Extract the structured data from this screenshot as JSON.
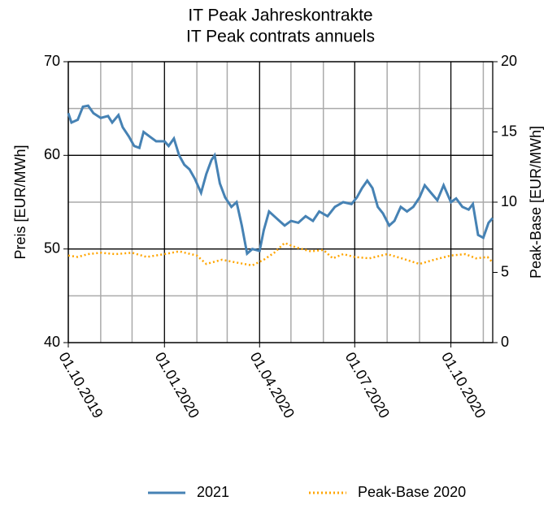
{
  "chart_data": {
    "type": "line",
    "title": "IT Peak Jahreskontrakte",
    "subtitle": "IT Peak contrats annuels",
    "ylabel": "Preis [EUR/MWh]",
    "y2label": "Peak-Base [EUR/MWh]",
    "ylim": [
      40,
      70
    ],
    "yticks": [
      40,
      50,
      60,
      70
    ],
    "yminorticks": [
      45,
      55,
      65
    ],
    "y2lim": [
      0,
      20
    ],
    "y2ticks": [
      0,
      5,
      10,
      15,
      20
    ],
    "xlim": [
      "2019-10-01",
      "2020-11-10"
    ],
    "xticks": [
      {
        "value": "2019-10-01",
        "label": "01.10.2019"
      },
      {
        "value": "2020-01-01",
        "label": "01.01.2020"
      },
      {
        "value": "2020-04-01",
        "label": "01.04.2020"
      },
      {
        "value": "2020-07-01",
        "label": "01.07.2020"
      },
      {
        "value": "2020-10-01",
        "label": "01.10.2020"
      }
    ],
    "xminorticks": [
      "2019-11-01",
      "2019-12-01",
      "2020-02-01",
      "2020-03-01",
      "2020-05-01",
      "2020-06-01",
      "2020-08-01",
      "2020-09-01",
      "2020-11-01"
    ],
    "grid": true,
    "legend": "bottom",
    "series": [
      {
        "name": "2021",
        "color": "#4682b4",
        "style": "solid",
        "x": [
          "2019-10-01",
          "2019-10-04",
          "2019-10-10",
          "2019-10-15",
          "2019-10-20",
          "2019-10-25",
          "2019-11-01",
          "2019-11-08",
          "2019-11-12",
          "2019-11-18",
          "2019-11-22",
          "2019-11-28",
          "2019-12-03",
          "2019-12-08",
          "2019-12-12",
          "2019-12-18",
          "2019-12-24",
          "2020-01-01",
          "2020-01-05",
          "2020-01-10",
          "2020-01-15",
          "2020-01-20",
          "2020-01-25",
          "2020-01-30",
          "2020-02-05",
          "2020-02-10",
          "2020-02-15",
          "2020-02-18",
          "2020-02-23",
          "2020-02-28",
          "2020-03-05",
          "2020-03-10",
          "2020-03-15",
          "2020-03-20",
          "2020-03-25",
          "2020-04-01",
          "2020-04-05",
          "2020-04-10",
          "2020-04-15",
          "2020-04-20",
          "2020-04-25",
          "2020-05-01",
          "2020-05-08",
          "2020-05-15",
          "2020-05-22",
          "2020-05-28",
          "2020-06-05",
          "2020-06-12",
          "2020-06-20",
          "2020-06-28",
          "2020-07-03",
          "2020-07-08",
          "2020-07-13",
          "2020-07-18",
          "2020-07-23",
          "2020-07-28",
          "2020-08-03",
          "2020-08-08",
          "2020-08-14",
          "2020-08-20",
          "2020-08-26",
          "2020-09-01",
          "2020-09-06",
          "2020-09-12",
          "2020-09-18",
          "2020-09-24",
          "2020-10-01",
          "2020-10-06",
          "2020-10-12",
          "2020-10-18",
          "2020-10-22",
          "2020-10-27",
          "2020-11-01",
          "2020-11-06",
          "2020-11-10"
        ],
        "values": [
          64.5,
          63.5,
          63.8,
          65.2,
          65.3,
          64.5,
          64.0,
          64.2,
          63.5,
          64.3,
          63.0,
          62.0,
          61.0,
          60.8,
          62.5,
          62.0,
          61.5,
          61.5,
          61.0,
          61.8,
          60.0,
          59.0,
          58.5,
          57.5,
          56.0,
          58.0,
          59.5,
          60.0,
          57.0,
          55.5,
          54.5,
          55.0,
          52.5,
          49.5,
          50.0,
          49.8,
          52.0,
          54.0,
          53.5,
          53.0,
          52.5,
          53.0,
          52.8,
          53.5,
          53.0,
          54.0,
          53.5,
          54.5,
          55.0,
          54.8,
          55.5,
          56.5,
          57.3,
          56.5,
          54.5,
          53.8,
          52.5,
          53.0,
          54.5,
          54.0,
          54.5,
          55.5,
          56.8,
          56.0,
          55.2,
          56.8,
          55.0,
          55.4,
          54.5,
          54.2,
          54.8,
          51.5,
          51.2,
          52.8,
          53.3
        ]
      },
      {
        "name": "Peak-Base 2020",
        "color": "#ffa500",
        "style": "dotted",
        "axis": "y2",
        "x": [
          "2019-10-01",
          "2019-10-10",
          "2019-10-20",
          "2019-11-01",
          "2019-11-15",
          "2019-12-01",
          "2019-12-15",
          "2020-01-01",
          "2020-01-15",
          "2020-02-01",
          "2020-02-10",
          "2020-02-25",
          "2020-03-10",
          "2020-03-25",
          "2020-04-05",
          "2020-04-15",
          "2020-04-25",
          "2020-05-05",
          "2020-05-20",
          "2020-06-01",
          "2020-06-10",
          "2020-06-20",
          "2020-07-01",
          "2020-07-15",
          "2020-08-01",
          "2020-08-15",
          "2020-09-01",
          "2020-09-15",
          "2020-10-01",
          "2020-10-15",
          "2020-10-25",
          "2020-11-05",
          "2020-11-10"
        ],
        "values": [
          6.2,
          6.1,
          6.3,
          6.4,
          6.3,
          6.4,
          6.1,
          6.3,
          6.5,
          6.2,
          5.6,
          5.9,
          5.7,
          5.5,
          5.9,
          6.4,
          7.1,
          6.8,
          6.5,
          6.6,
          6.0,
          6.3,
          6.1,
          6.0,
          6.3,
          6.0,
          5.6,
          5.9,
          6.2,
          6.3,
          6.0,
          6.1,
          5.7
        ]
      }
    ]
  }
}
